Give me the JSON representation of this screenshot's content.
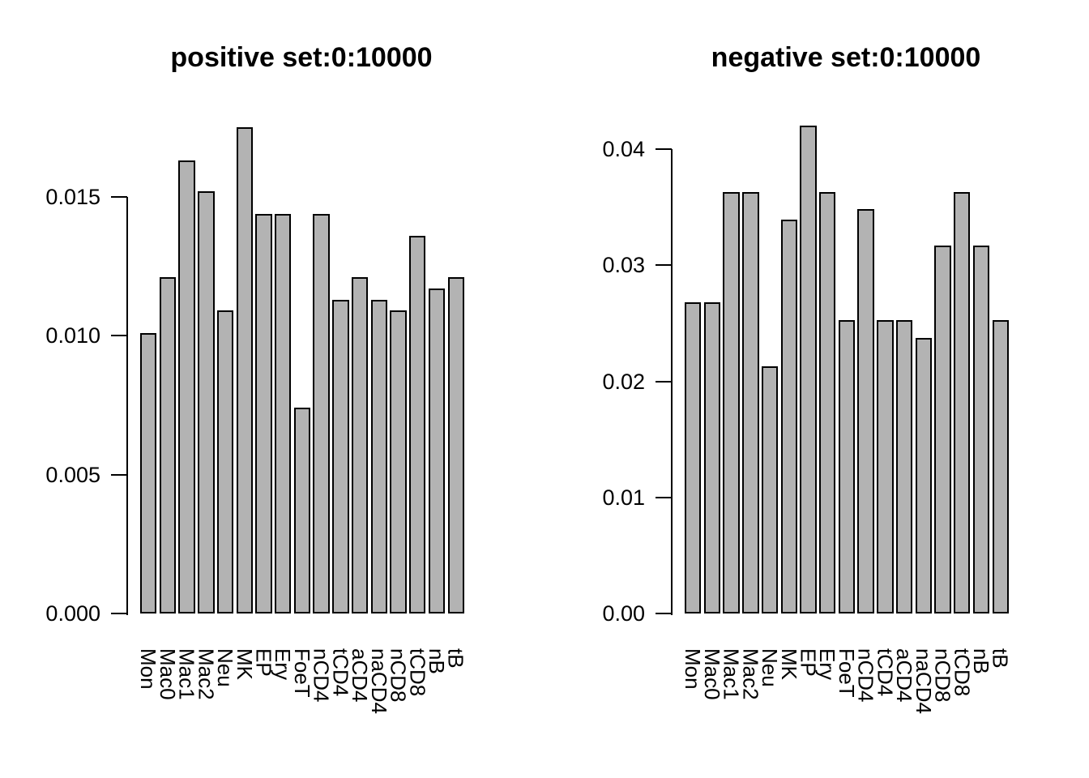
{
  "figure": {
    "background": "#ffffff",
    "bar_fill": "#b3b3b3",
    "bar_border": "#000000"
  },
  "chart_data": [
    {
      "type": "bar",
      "title": "positive set:0:10000",
      "xlabel": "",
      "ylabel": "",
      "categories": [
        "Mon",
        "Mac0",
        "Mac1",
        "Mac2",
        "Neu",
        "MK",
        "EP",
        "Ery",
        "FoeT",
        "nCD4",
        "tCD4",
        "aCD4",
        "naCD4",
        "nCD8",
        "tCD8",
        "nB",
        "tB"
      ],
      "values": [
        0.0101,
        0.0121,
        0.0163,
        0.0152,
        0.0109,
        0.0175,
        0.0144,
        0.0144,
        0.0074,
        0.0144,
        0.0113,
        0.0121,
        0.0113,
        0.0109,
        0.0136,
        0.0117,
        0.0121
      ],
      "ylim": [
        0,
        0.0175
      ],
      "ytick_values": [
        0,
        0.005,
        0.01,
        0.015
      ],
      "ytick_labels": [
        "0.000",
        "0.005",
        "0.010",
        "0.015"
      ],
      "grid": false,
      "legend": "none"
    },
    {
      "type": "bar",
      "title": "negative set:0:10000",
      "xlabel": "",
      "ylabel": "",
      "categories": [
        "Mon",
        "Mac0",
        "Mac1",
        "Mac2",
        "Neu",
        "MK",
        "EP",
        "Ery",
        "FoeT",
        "nCD4",
        "tCD4",
        "aCD4",
        "naCD4",
        "nCD8",
        "tCD8",
        "nB",
        "tB"
      ],
      "values": [
        0.0268,
        0.0268,
        0.0363,
        0.0363,
        0.0213,
        0.0339,
        0.042,
        0.0363,
        0.0253,
        0.0348,
        0.0253,
        0.0253,
        0.0237,
        0.0317,
        0.0363,
        0.0317,
        0.0253
      ],
      "ylim": [
        0,
        0.042
      ],
      "ytick_values": [
        0,
        0.01,
        0.02,
        0.03,
        0.04
      ],
      "ytick_labels": [
        "0.00",
        "0.01",
        "0.02",
        "0.03",
        "0.04"
      ],
      "grid": false,
      "legend": "none"
    }
  ]
}
